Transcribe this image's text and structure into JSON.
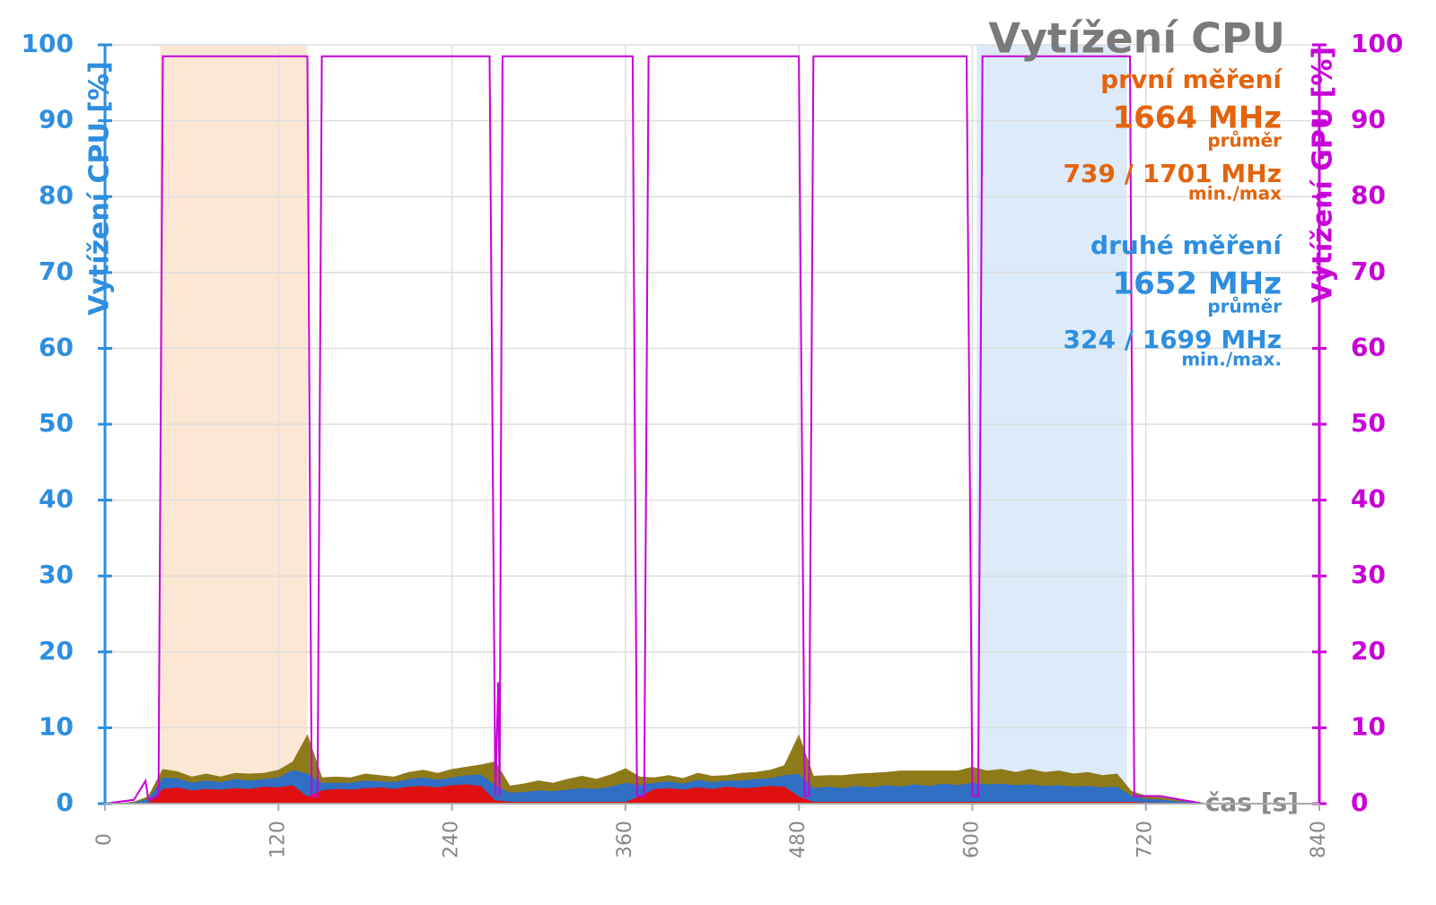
{
  "chart_data": {
    "type": "area",
    "stacked": true,
    "title": "Vytížení CPU",
    "y_label": "Vytížení CPU [%]",
    "y2_label": "Vytížení GPU [%]",
    "x_label": "čas [s]",
    "xlim": [
      0,
      840
    ],
    "xticks": [
      0,
      120,
      240,
      360,
      480,
      600,
      720,
      840
    ],
    "ylim": [
      0,
      100
    ],
    "yticks": [
      0,
      10,
      20,
      30,
      40,
      50,
      60,
      70,
      80,
      90,
      100
    ],
    "y2lim": [
      0,
      100
    ],
    "y2ticks": [
      0,
      10,
      20,
      30,
      40,
      50,
      60,
      70,
      80,
      90,
      100
    ],
    "y_color": "#2e8ee0",
    "y2_color": "#c800d8",
    "grid": true,
    "highlights": [
      {
        "xlim": [
          38,
          140
        ],
        "color": "#fbe3cc"
      },
      {
        "xlim": [
          603,
          707
        ],
        "color": "#d6e6f8"
      }
    ],
    "annotations": [
      {
        "color": "#e3640e",
        "heading": "první měření",
        "average": "1664 MHz",
        "average_label": "průměr",
        "range": "739 / 1701 MHz",
        "range_label": "min./max"
      },
      {
        "color": "#2e8ee0",
        "heading": "druhé měření",
        "average": "1652 MHz",
        "average_label": "průměr",
        "range": "324 / 1699 MHz",
        "range_label": "min./max."
      }
    ],
    "x": [
      0,
      10,
      20,
      30,
      40,
      50,
      60,
      70,
      80,
      90,
      100,
      110,
      120,
      130,
      140,
      150,
      160,
      170,
      180,
      190,
      200,
      210,
      220,
      230,
      240,
      250,
      260,
      270,
      280,
      290,
      300,
      310,
      320,
      330,
      340,
      350,
      360,
      370,
      380,
      390,
      400,
      410,
      420,
      430,
      440,
      450,
      460,
      470,
      480,
      490,
      500,
      510,
      520,
      530,
      540,
      550,
      560,
      570,
      580,
      590,
      600,
      610,
      620,
      630,
      640,
      650,
      660,
      670,
      680,
      690,
      700,
      710,
      720,
      730,
      740,
      750,
      760
    ],
    "series": [
      {
        "type": "area",
        "color": "#e01010",
        "values": [
          0,
          0,
          0,
          0.2,
          2,
          2.2,
          1.8,
          2,
          1.9,
          2.1,
          2,
          2.3,
          2.2,
          2.5,
          1,
          1.8,
          2,
          1.9,
          2.1,
          2.2,
          2,
          2.3,
          2.4,
          2.2,
          2.5,
          2.6,
          2.4,
          0.5,
          0.3,
          0.3,
          0.3,
          0.3,
          0.3,
          0.3,
          0.3,
          0.3,
          0.3,
          1,
          2,
          2.1,
          1.9,
          2.2,
          2,
          2.3,
          2.1,
          2.2,
          2.4,
          2.3,
          1,
          0.3,
          0.3,
          0.3,
          0.3,
          0.3,
          0.3,
          0.3,
          0.3,
          0.3,
          0.3,
          0.3,
          0.3,
          0.3,
          0.3,
          0.3,
          0.3,
          0.3,
          0.3,
          0.3,
          0.3,
          0.3,
          0.3,
          0.3,
          0.2,
          0.2,
          0.1,
          0.1,
          0
        ]
      },
      {
        "type": "area",
        "color": "#2f6fc4",
        "values": [
          0,
          0,
          0.2,
          0.5,
          1.5,
          1.2,
          1,
          1.1,
          1,
          1.2,
          1.1,
          1,
          1.3,
          2,
          3,
          1,
          0.8,
          0.9,
          1,
          0.8,
          0.9,
          1,
          1.1,
          1,
          1,
          1.2,
          1.5,
          2,
          1.2,
          1.3,
          1.5,
          1.4,
          1.6,
          1.8,
          1.7,
          2,
          2.5,
          1.5,
          0.8,
          0.9,
          0.8,
          1,
          0.9,
          0.8,
          1,
          1.1,
          1,
          1.5,
          3,
          1.8,
          2,
          1.8,
          2.1,
          1.9,
          2.2,
          2,
          2.3,
          2.1,
          2.4,
          2.2,
          2.5,
          2.3,
          2.4,
          2.2,
          2.3,
          2.1,
          2.2,
          2,
          2.1,
          1.9,
          2,
          0.8,
          0.5,
          0.4,
          0.3,
          0.2,
          0
        ]
      },
      {
        "type": "area",
        "color": "#8f7a1a",
        "values": [
          0,
          0,
          0,
          0.2,
          1,
          0.8,
          0.7,
          0.8,
          0.6,
          0.7,
          0.8,
          0.7,
          0.9,
          1,
          5,
          0.6,
          0.7,
          0.6,
          0.8,
          0.7,
          0.6,
          0.8,
          0.9,
          0.8,
          1,
          1,
          1.2,
          3,
          0.8,
          1,
          1.2,
          1,
          1.3,
          1.5,
          1.2,
          1.5,
          1.8,
          1,
          0.6,
          0.7,
          0.6,
          0.8,
          0.7,
          0.6,
          0.9,
          0.8,
          1,
          1.2,
          5,
          1.5,
          1.4,
          1.6,
          1.5,
          1.8,
          1.6,
          2,
          1.7,
          1.9,
          1.6,
          1.8,
          2,
          1.7,
          1.8,
          1.6,
          1.9,
          1.7,
          1.8,
          1.6,
          1.7,
          1.5,
          1.6,
          0.5,
          0.3,
          0.2,
          0.1,
          0.1,
          0
        ]
      },
      {
        "type": "line",
        "axis": "y2",
        "color": "#c800d8",
        "x": [
          0,
          20,
          28,
          30,
          37,
          40,
          140,
          143,
          147,
          150,
          266,
          270,
          272,
          273,
          275,
          365,
          368,
          373,
          376,
          480,
          484,
          487,
          490,
          596,
          600,
          604,
          607,
          709,
          712,
          720,
          730,
          745,
          760
        ],
        "values": [
          0,
          0.5,
          3,
          0.5,
          1,
          98.5,
          98.5,
          1,
          1,
          98.5,
          98.5,
          1,
          16,
          1,
          98.5,
          98.5,
          1,
          1,
          98.5,
          98.5,
          1,
          1,
          98.5,
          98.5,
          1,
          1,
          98.5,
          98.5,
          1,
          1,
          1,
          0.5,
          0
        ]
      }
    ]
  }
}
